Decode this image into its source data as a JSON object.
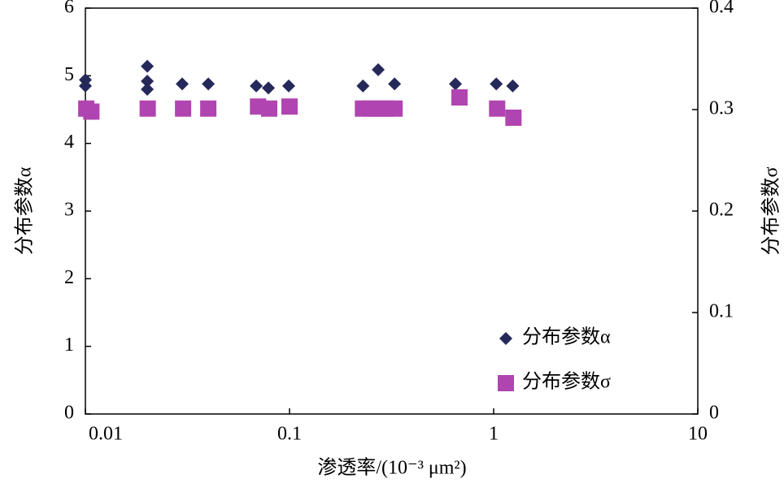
{
  "chart_data": {
    "type": "scatter",
    "xlabel": "渗透率/(10⁻³ μm²)",
    "ylabel": "分布参数α",
    "y2label": "分布参数σ",
    "xscale": "log",
    "xlim": [
      0.01,
      10
    ],
    "xticks": [
      0.01,
      0.1,
      1,
      10
    ],
    "ylim": [
      0,
      6
    ],
    "yticks": [
      0,
      1,
      2,
      3,
      4,
      5,
      6
    ],
    "y2lim": [
      0,
      0.4
    ],
    "y2ticks": [
      0,
      0.1,
      0.2,
      0.3,
      0.4
    ],
    "legend": "lower right",
    "series": [
      {
        "name": "分布参数α",
        "color": "#25295a",
        "marker": "diamond",
        "x": [
          0.01,
          0.01,
          0.0201,
          0.0201,
          0.0201,
          0.0298,
          0.04,
          0.0687,
          0.0788,
          0.0991,
          0.229,
          0.272,
          0.327,
          0.65,
          1.03,
          1.24
        ],
        "values": [
          4.94,
          4.85,
          5.14,
          4.92,
          4.8,
          4.88,
          4.88,
          4.85,
          4.82,
          4.85,
          4.85,
          5.09,
          4.88,
          4.88,
          4.88,
          4.85
        ]
      },
      {
        "name": "分布参数σ",
        "color": "#b044b0",
        "marker": "square",
        "axis": "y2",
        "x": [
          0.0101,
          0.0107,
          0.0202,
          0.0301,
          0.04,
          0.0701,
          0.0795,
          0.1,
          0.229,
          0.249,
          0.273,
          0.298,
          0.327,
          0.68,
          1.04,
          1.25
        ],
        "values": [
          0.301,
          0.298,
          0.301,
          0.301,
          0.301,
          0.303,
          0.301,
          0.303,
          0.301,
          0.301,
          0.301,
          0.301,
          0.301,
          0.312,
          0.301,
          0.292
        ]
      }
    ]
  }
}
